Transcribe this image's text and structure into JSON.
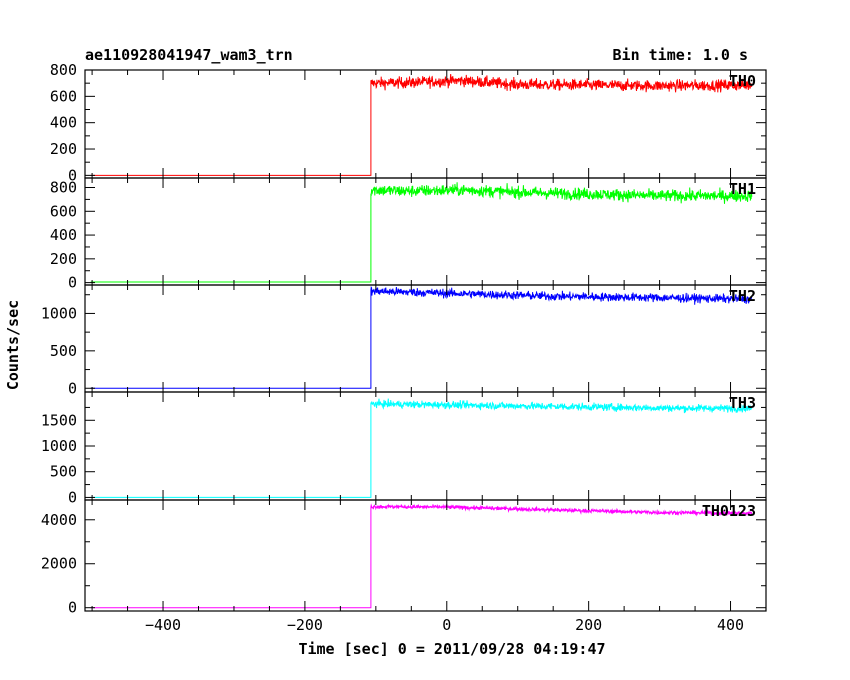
{
  "chart_data": {
    "type": "line",
    "title": "ae110928041947_wam3_trn",
    "bin_time_label": "Bin time: 1.0 s",
    "xlabel": "Time [sec] 0 = 2011/09/28 04:19:47",
    "ylabel": "Counts/sec",
    "xlim": [
      -510,
      450
    ],
    "xticks": [
      -400,
      -200,
      0,
      200,
      400
    ],
    "step_time": -107,
    "x_end": 430,
    "grid": false,
    "panels": [
      {
        "name": "TH0",
        "color": "#ff0000",
        "ylim": [
          -20,
          800
        ],
        "yticks": [
          0,
          200,
          400,
          600,
          800
        ],
        "pre_level": 0,
        "level_profile": [
          [
            -107,
            700
          ],
          [
            -50,
            705
          ],
          [
            20,
            720
          ],
          [
            100,
            690
          ],
          [
            300,
            680
          ],
          [
            430,
            685
          ]
        ],
        "noise": 30
      },
      {
        "name": "TH1",
        "color": "#00ff00",
        "ylim": [
          -20,
          880
        ],
        "yticks": [
          0,
          200,
          400,
          600,
          800
        ],
        "pre_level": 5,
        "level_profile": [
          [
            -107,
            780
          ],
          [
            -50,
            770
          ],
          [
            20,
            780
          ],
          [
            100,
            760
          ],
          [
            300,
            730
          ],
          [
            430,
            730
          ]
        ],
        "noise": 35
      },
      {
        "name": "TH2",
        "color": "#0000ff",
        "ylim": [
          -50,
          1380
        ],
        "yticks": [
          0,
          500,
          1000
        ],
        "pre_level": 0,
        "level_profile": [
          [
            -107,
            1300
          ],
          [
            0,
            1270
          ],
          [
            150,
            1230
          ],
          [
            300,
            1210
          ],
          [
            430,
            1190
          ]
        ],
        "noise": 40
      },
      {
        "name": "TH3",
        "color": "#00ffff",
        "ylim": [
          -50,
          2050
        ],
        "yticks": [
          0,
          500,
          1000,
          1500
        ],
        "pre_level": 0,
        "level_profile": [
          [
            -107,
            1820
          ],
          [
            0,
            1800
          ],
          [
            150,
            1770
          ],
          [
            300,
            1740
          ],
          [
            430,
            1730
          ]
        ],
        "noise": 50
      },
      {
        "name": "TH0123",
        "color": "#ff00ff",
        "ylim": [
          -150,
          4900
        ],
        "yticks": [
          0,
          2000,
          4000
        ],
        "pre_level": 0,
        "level_profile": [
          [
            -107,
            4600
          ],
          [
            0,
            4580
          ],
          [
            150,
            4450
          ],
          [
            300,
            4330
          ],
          [
            430,
            4300
          ]
        ],
        "noise": 60
      }
    ]
  }
}
